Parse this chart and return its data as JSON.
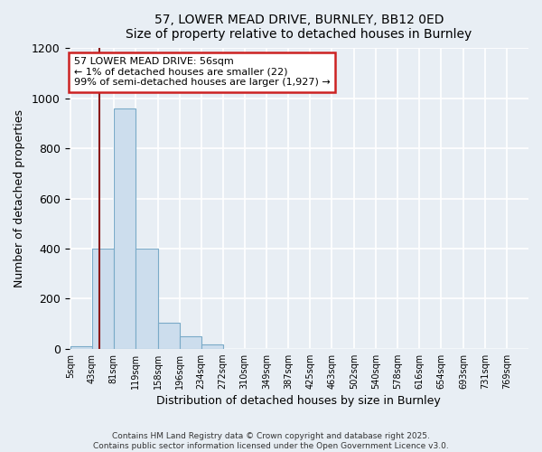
{
  "title": "57, LOWER MEAD DRIVE, BURNLEY, BB12 0ED",
  "subtitle": "Size of property relative to detached houses in Burnley",
  "xlabel": "Distribution of detached houses by size in Burnley",
  "ylabel": "Number of detached properties",
  "bar_labels": [
    "5sqm",
    "43sqm",
    "81sqm",
    "119sqm",
    "158sqm",
    "196sqm",
    "234sqm",
    "272sqm",
    "310sqm",
    "349sqm",
    "387sqm",
    "425sqm",
    "463sqm",
    "502sqm",
    "540sqm",
    "578sqm",
    "616sqm",
    "654sqm",
    "693sqm",
    "731sqm",
    "769sqm"
  ],
  "bar_values": [
    10,
    400,
    960,
    400,
    105,
    50,
    18,
    0,
    0,
    0,
    0,
    0,
    0,
    0,
    0,
    0,
    0,
    0,
    0,
    0,
    0
  ],
  "bar_color": "#ccdded",
  "bar_edge_color": "#7aaac8",
  "ylim": [
    0,
    1200
  ],
  "yticks": [
    0,
    200,
    400,
    600,
    800,
    1000,
    1200
  ],
  "property_line_color": "#8b1a1a",
  "annotation_title": "57 LOWER MEAD DRIVE: 56sqm",
  "annotation_line1": "← 1% of detached houses are smaller (22)",
  "annotation_line2": "99% of semi-detached houses are larger (1,927) →",
  "annotation_box_facecolor": "#ffffff",
  "annotation_box_edgecolor": "#cc2222",
  "footer1": "Contains HM Land Registry data © Crown copyright and database right 2025.",
  "footer2": "Contains public sector information licensed under the Open Government Licence v3.0.",
  "bg_color": "#e8eef4",
  "plot_bg_color": "#e8eef4",
  "grid_color": "#ffffff",
  "bin_edges": [
    5,
    43,
    81,
    119,
    158,
    196,
    234,
    272,
    310,
    349,
    387,
    425,
    463,
    502,
    540,
    578,
    616,
    654,
    693,
    731,
    769
  ],
  "property_sqm": 56
}
